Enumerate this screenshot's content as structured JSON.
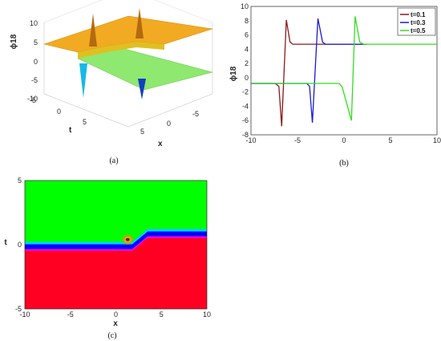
{
  "panels": {
    "a": {
      "caption": "(a)"
    },
    "b": {
      "caption": "(b)"
    },
    "c": {
      "caption": "(c)"
    }
  },
  "chart_data": [
    {
      "id": "a",
      "type": "surface3d",
      "xlabel": "x",
      "ylabel": "t",
      "zlabel": "ϕ18",
      "x_ticks": [
        "5",
        "0",
        "-5"
      ],
      "t_ticks": [
        "-5",
        "0",
        "5"
      ],
      "z_ticks": [
        "10",
        "5",
        "0",
        "-5",
        "-10"
      ],
      "zlim": [
        -10,
        10
      ],
      "plateau_high": 4.7,
      "plateau_low": -0.8,
      "colors": {
        "high": "#f0a020",
        "low": "#8fe870",
        "spike_up": "#c07010",
        "spike_down": "#1040c0"
      }
    },
    {
      "id": "b",
      "type": "line",
      "xlabel": "",
      "ylabel": "ϕ18",
      "xlim": [
        -10,
        10
      ],
      "ylim": [
        -8,
        10
      ],
      "x_ticks": [
        -10,
        -5,
        0,
        5,
        10
      ],
      "y_ticks": [
        -8,
        -6,
        -4,
        -2,
        0,
        2,
        4,
        6,
        8,
        10
      ],
      "legend_position": "top-right",
      "series": [
        {
          "name": "t=0.1",
          "color": "#8b1a1a",
          "x": [
            -10,
            -7.4,
            -7.0,
            -6.7,
            -6.2,
            -5.8,
            -5.5,
            -5.0,
            2.5
          ],
          "y": [
            -0.8,
            -0.8,
            -1.2,
            -6.8,
            8.1,
            5.0,
            4.7,
            4.7,
            4.7
          ]
        },
        {
          "name": "t=0.3",
          "color": "#1a1ad0",
          "x": [
            -10,
            -4.0,
            -3.7,
            -3.4,
            -2.8,
            -2.3,
            -2.0,
            -1.6,
            2.5
          ],
          "y": [
            -0.8,
            -0.8,
            -1.2,
            -6.3,
            8.3,
            5.0,
            4.7,
            4.7,
            4.7
          ]
        },
        {
          "name": "t=0.5",
          "color": "#33dd22",
          "x": [
            -10,
            -0.5,
            -0.2,
            0.8,
            1.2,
            1.7,
            2.1,
            3.0,
            10
          ],
          "y": [
            -0.8,
            -0.8,
            -1.3,
            -6.0,
            8.6,
            5.0,
            4.7,
            4.7,
            4.7
          ]
        }
      ]
    },
    {
      "id": "c",
      "type": "heatmap",
      "xlabel": "x",
      "ylabel": "t",
      "xlim": [
        -10,
        10
      ],
      "ylim": [
        -5,
        5
      ],
      "x_ticks": [
        -10,
        -5,
        0,
        5,
        10
      ],
      "y_ticks": [
        5,
        0,
        -5
      ],
      "boundary": {
        "x": [
          -10,
          1.8,
          3.5,
          10
        ],
        "t": [
          0,
          0,
          1.0,
          1.0
        ]
      },
      "hot_spot": {
        "x": 1.3,
        "t": 0.4
      },
      "colors": {
        "upper": "#00ff00",
        "lower": "#ff0022",
        "band": [
          "#00d0ff",
          "#0000ff",
          "#ff00ff"
        ]
      }
    }
  ]
}
